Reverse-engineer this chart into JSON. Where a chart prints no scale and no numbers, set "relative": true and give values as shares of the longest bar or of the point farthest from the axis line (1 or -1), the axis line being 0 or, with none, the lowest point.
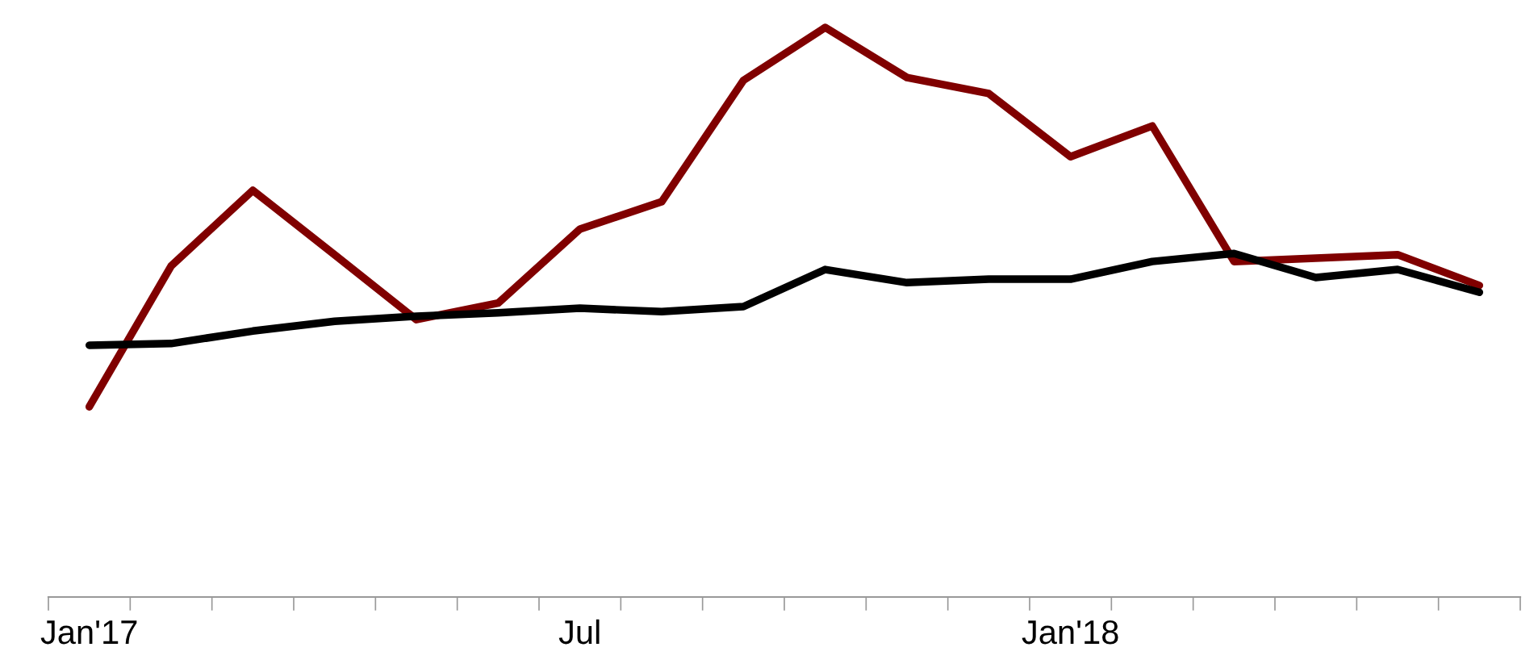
{
  "chart_data": {
    "type": "line",
    "relative": true,
    "categories": [
      "Jan'17",
      null,
      null,
      null,
      null,
      null,
      "Jul",
      null,
      null,
      null,
      null,
      null,
      "Jan'18",
      null,
      null,
      null,
      null,
      null
    ],
    "series": [
      {
        "color": "#800000",
        "values": [
          0.334,
          0.581,
          0.714,
          0.601,
          0.487,
          0.516,
          0.646,
          0.694,
          0.907,
          1,
          0.912,
          0.884,
          0.773,
          0.827,
          0.589,
          0.595,
          0.601,
          0.547
        ]
      },
      {
        "color": "#000000",
        "values": [
          0.442,
          0.445,
          0.467,
          0.484,
          0.493,
          0.499,
          0.507,
          0.501,
          0.51,
          0.575,
          0.552,
          0.558,
          0.558,
          0.589,
          0.603,
          0.561,
          0.575,
          0.535
        ]
      }
    ]
  }
}
